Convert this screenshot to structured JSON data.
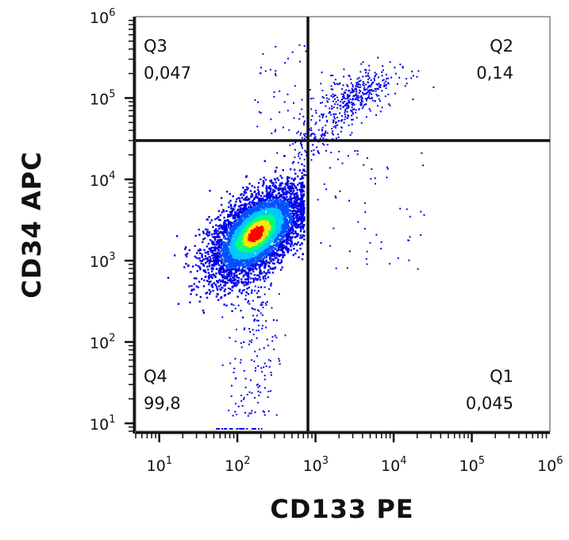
{
  "chart_data": {
    "type": "scatter",
    "subtype": "flow-cytometry-density-dot-plot",
    "xlabel": "CD133 PE",
    "ylabel": "CD34 APC",
    "x_scale": "log",
    "y_scale": "log",
    "xlim": [
      5,
      1000000
    ],
    "ylim": [
      8,
      1000000
    ],
    "x_ticks": [
      {
        "base": "10",
        "exp": "1",
        "value": 10
      },
      {
        "base": "10",
        "exp": "2",
        "value": 100
      },
      {
        "base": "10",
        "exp": "3",
        "value": 1000
      },
      {
        "base": "10",
        "exp": "4",
        "value": 10000
      },
      {
        "base": "10",
        "exp": "5",
        "value": 100000
      },
      {
        "base": "10",
        "exp": "6",
        "value": 1000000
      }
    ],
    "y_ticks": [
      {
        "base": "10",
        "exp": "1",
        "value": 10
      },
      {
        "base": "10",
        "exp": "2",
        "value": 100
      },
      {
        "base": "10",
        "exp": "3",
        "value": 1000
      },
      {
        "base": "10",
        "exp": "4",
        "value": 10000
      },
      {
        "base": "10",
        "exp": "5",
        "value": 100000
      },
      {
        "base": "10",
        "exp": "6",
        "value": 1000000
      }
    ],
    "gates": {
      "x_threshold": 800,
      "y_threshold": 30000
    },
    "quadrants": [
      {
        "id": "Q3",
        "name": "Q3",
        "value": "0,047",
        "position": "top-left"
      },
      {
        "id": "Q2",
        "name": "Q2",
        "value": "0,14",
        "position": "top-right"
      },
      {
        "id": "Q4",
        "name": "Q4",
        "value": "99,8",
        "position": "bottom-left"
      },
      {
        "id": "Q1",
        "name": "Q1",
        "value": "0,045",
        "position": "bottom-right"
      }
    ],
    "populations": [
      {
        "center_x": 170,
        "center_y": 2200,
        "spread_x_decades": 0.3,
        "spread_y_decades": 0.28,
        "correlation": 0.55,
        "role": "main"
      },
      {
        "center_x": 3500,
        "center_y": 120000,
        "spread_x_decades": 0.3,
        "spread_y_decades": 0.13,
        "correlation": 0.3,
        "role": "double-positive"
      }
    ],
    "density_colors": [
      "#0000e6",
      "#0050ff",
      "#00c8ff",
      "#00ff80",
      "#ffe600",
      "#ff0000"
    ],
    "grid": false
  }
}
